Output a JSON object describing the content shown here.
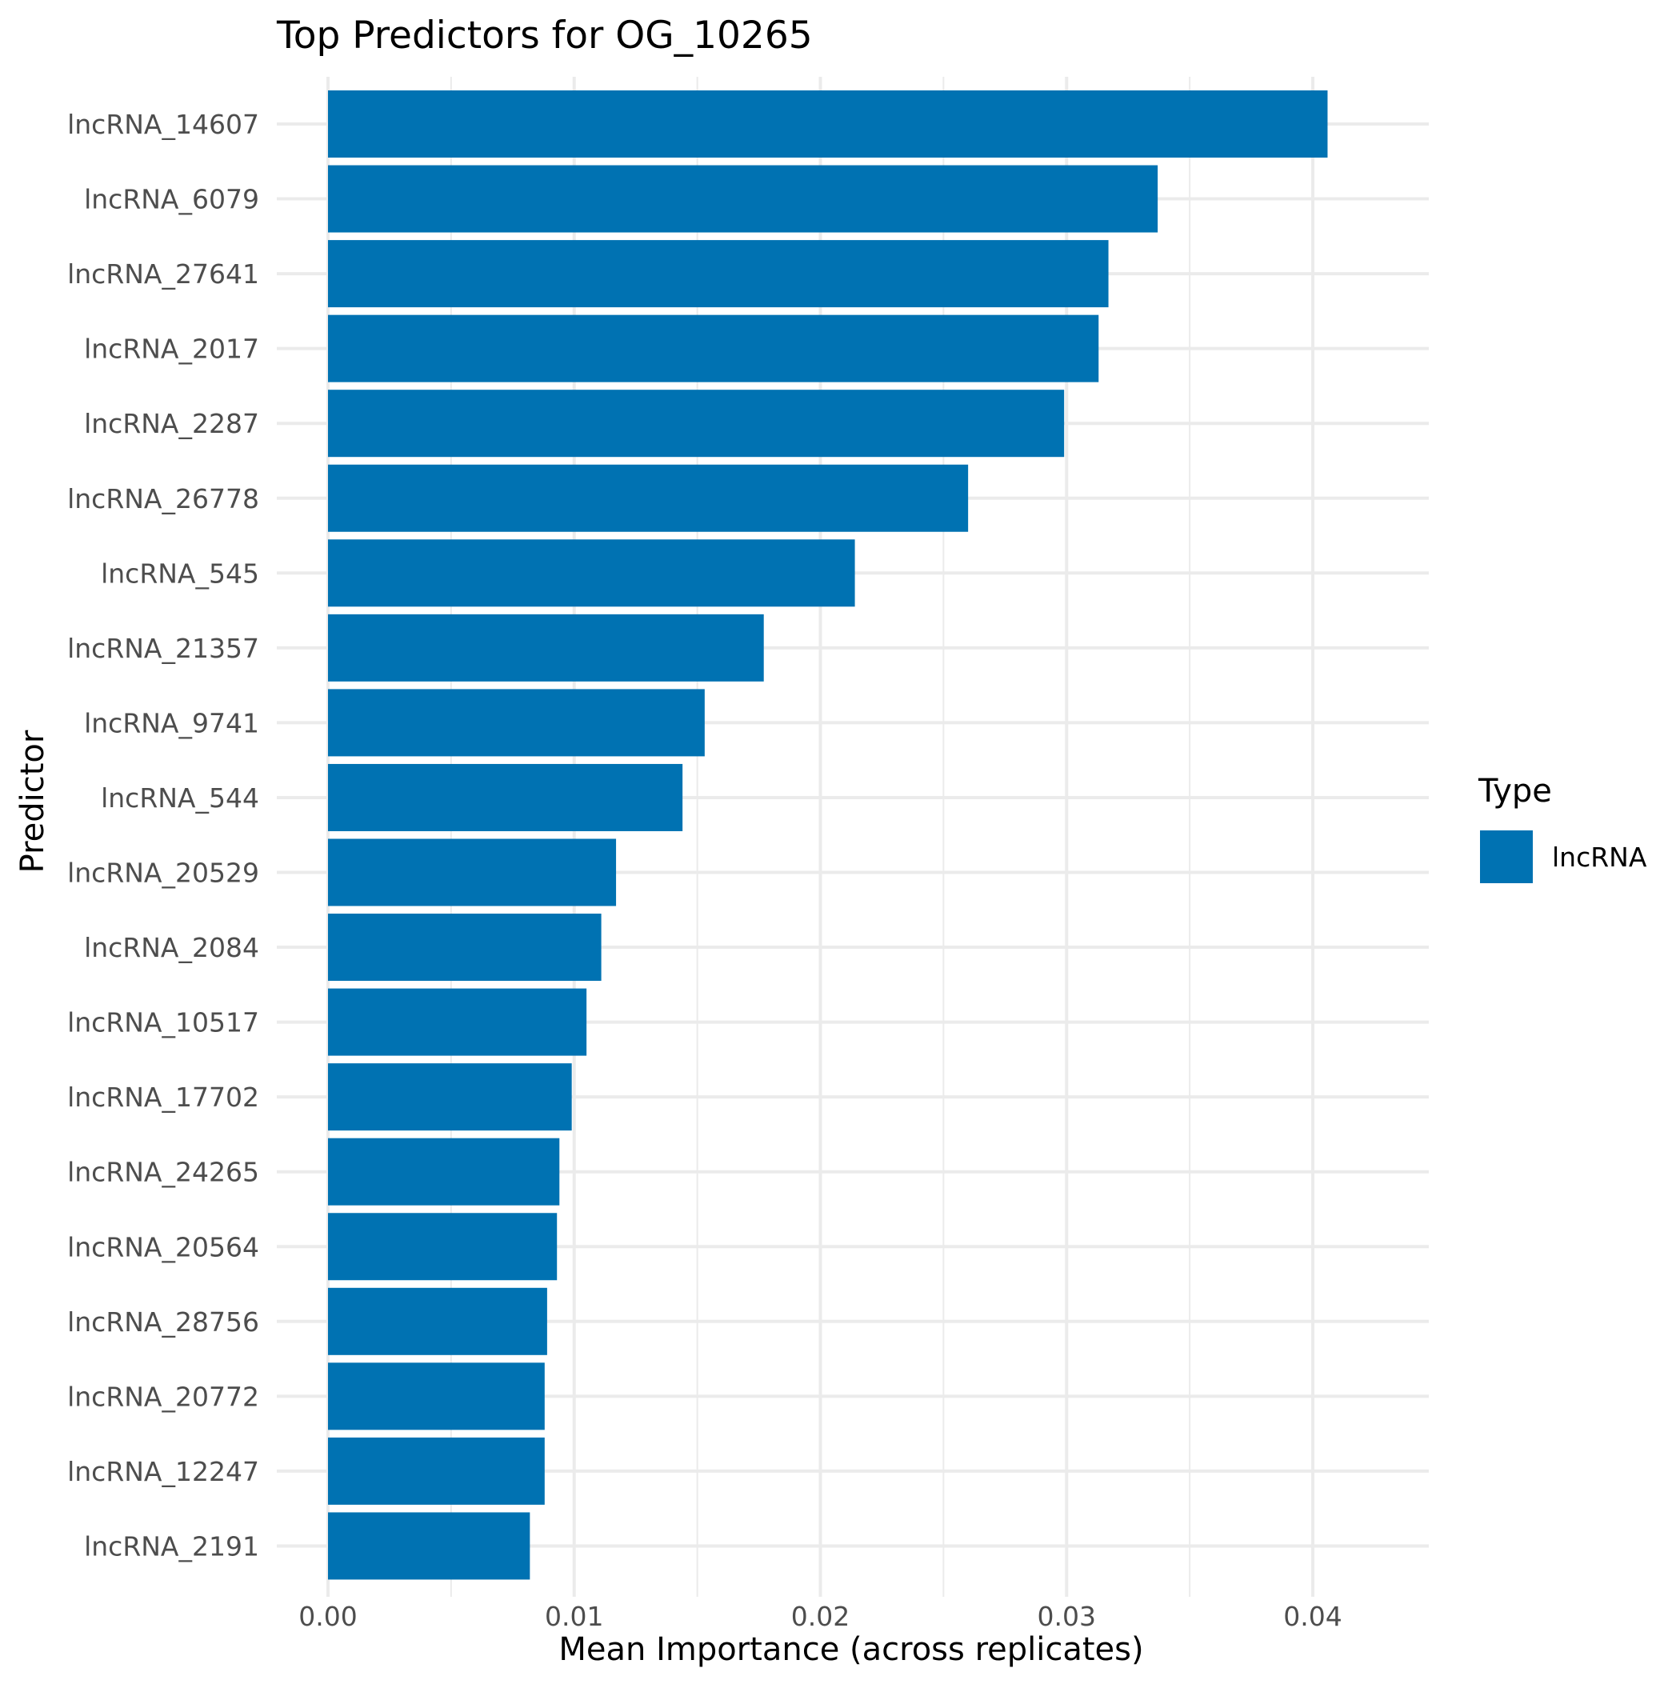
{
  "chart_data": {
    "type": "bar",
    "orientation": "horizontal",
    "title": "Top Predictors for OG_10265",
    "xlabel": "Mean Importance (across replicates)",
    "ylabel": "Predictor",
    "categories": [
      "lncRNA_14607",
      "lncRNA_6079",
      "lncRNA_27641",
      "lncRNA_2017",
      "lncRNA_2287",
      "lncRNA_26778",
      "lncRNA_545",
      "lncRNA_21357",
      "lncRNA_9741",
      "lncRNA_544",
      "lncRNA_20529",
      "lncRNA_2084",
      "lncRNA_10517",
      "lncRNA_17702",
      "lncRNA_24265",
      "lncRNA_20564",
      "lncRNA_28756",
      "lncRNA_20772",
      "lncRNA_12247",
      "lncRNA_2191"
    ],
    "values": [
      0.0406,
      0.0337,
      0.0317,
      0.0313,
      0.0299,
      0.026,
      0.0214,
      0.0177,
      0.0153,
      0.0144,
      0.0117,
      0.0111,
      0.0105,
      0.0099,
      0.0094,
      0.0093,
      0.0089,
      0.0088,
      0.0088,
      0.0082
    ],
    "xlim": [
      0.0,
      0.0426
    ],
    "xticks": [
      0.0,
      0.01,
      0.02,
      0.03,
      0.04
    ],
    "xtick_labels": [
      "0.00",
      "0.01",
      "0.02",
      "0.03",
      "0.04"
    ],
    "grid": true,
    "bar_color": "#0072B2",
    "legend": {
      "title": "Type",
      "placement": "right",
      "entries": [
        {
          "label": "lncRNA",
          "color": "#0072B2"
        }
      ]
    }
  }
}
